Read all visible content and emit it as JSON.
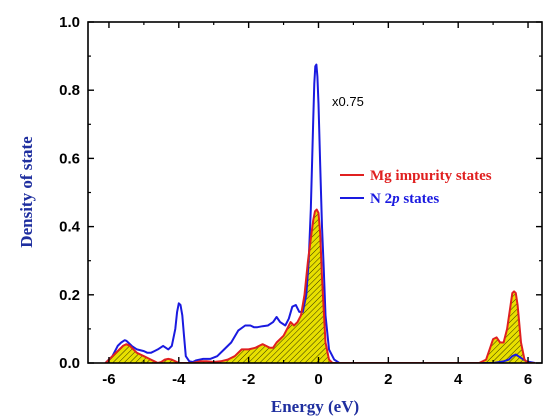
{
  "chart_data": {
    "type": "line",
    "xlabel": "Energy (eV)",
    "ylabel": "Density of state",
    "xlim": [
      -6.6,
      6.4
    ],
    "ylim": [
      0,
      1.0
    ],
    "x_ticks": [
      -6,
      -4,
      -2,
      0,
      2,
      4,
      6
    ],
    "x_tick_labels": [
      "-6",
      "-4",
      "-2",
      "0",
      "2",
      "4",
      "6"
    ],
    "y_ticks": [
      0.0,
      0.2,
      0.4,
      0.6,
      0.8,
      1.0
    ],
    "y_tick_labels": [
      "0.0",
      "0.2",
      "0.4",
      "0.6",
      "0.8",
      "1.0"
    ],
    "annotation": "x0.75",
    "legend_position": "right",
    "grid": false,
    "series": [
      {
        "name_parts": [
          "Mg impurity states"
        ],
        "color": "#e02020",
        "fill": "#e8e000",
        "fill_pattern": "hatched",
        "x": [
          -6.1,
          -5.8,
          -5.6,
          -5.5,
          -5.4,
          -5.3,
          -5.2,
          -5.1,
          -5.0,
          -4.9,
          -4.8,
          -4.7,
          -4.6,
          -4.5,
          -4.4,
          -4.3,
          -4.2,
          -4.1,
          -4.0,
          -3.9,
          -3.8,
          -3.6,
          -3.4,
          -3.2,
          -3.0,
          -2.8,
          -2.6,
          -2.4,
          -2.2,
          -2.0,
          -1.8,
          -1.7,
          -1.6,
          -1.5,
          -1.4,
          -1.3,
          -1.2,
          -1.1,
          -1.0,
          -0.9,
          -0.8,
          -0.7,
          -0.6,
          -0.5,
          -0.4,
          -0.3,
          -0.2,
          -0.15,
          -0.1,
          -0.05,
          0.0,
          0.05,
          0.1,
          0.2,
          0.3,
          0.4,
          0.6,
          1.0,
          2.0,
          3.0,
          4.0,
          4.6,
          4.8,
          4.9,
          5.0,
          5.1,
          5.2,
          5.3,
          5.4,
          5.5,
          5.55,
          5.6,
          5.65,
          5.7,
          5.8,
          5.9,
          6.0,
          6.2
        ],
        "y": [
          0.0,
          0.03,
          0.05,
          0.055,
          0.05,
          0.04,
          0.03,
          0.025,
          0.02,
          0.015,
          0.01,
          0.005,
          0.0,
          0.003,
          0.01,
          0.012,
          0.01,
          0.005,
          0.0,
          0.0,
          0.0,
          0.0,
          0.005,
          0.005,
          0.003,
          0.005,
          0.01,
          0.02,
          0.04,
          0.04,
          0.045,
          0.05,
          0.055,
          0.05,
          0.045,
          0.045,
          0.06,
          0.07,
          0.08,
          0.1,
          0.12,
          0.11,
          0.12,
          0.14,
          0.2,
          0.3,
          0.38,
          0.42,
          0.445,
          0.45,
          0.44,
          0.38,
          0.25,
          0.06,
          0.01,
          0.0,
          0.0,
          0.0,
          0.0,
          0.0,
          0.0,
          0.0,
          0.01,
          0.04,
          0.07,
          0.075,
          0.06,
          0.06,
          0.1,
          0.17,
          0.205,
          0.21,
          0.205,
          0.17,
          0.06,
          0.01,
          0.0,
          0.0
        ]
      },
      {
        "name_parts": [
          "N 2",
          "p",
          " states"
        ],
        "color": "#1a1ae0",
        "x": [
          -6.1,
          -5.9,
          -5.75,
          -5.65,
          -5.55,
          -5.5,
          -5.45,
          -5.35,
          -5.2,
          -5.0,
          -4.9,
          -4.8,
          -4.7,
          -4.6,
          -4.45,
          -4.3,
          -4.2,
          -4.1,
          -4.05,
          -4.0,
          -3.95,
          -3.9,
          -3.85,
          -3.8,
          -3.7,
          -3.6,
          -3.5,
          -3.3,
          -3.1,
          -2.9,
          -2.7,
          -2.5,
          -2.3,
          -2.1,
          -1.95,
          -1.85,
          -1.75,
          -1.6,
          -1.45,
          -1.3,
          -1.2,
          -1.1,
          -0.95,
          -0.85,
          -0.75,
          -0.65,
          -0.55,
          -0.45,
          -0.35,
          -0.28,
          -0.22,
          -0.18,
          -0.15,
          -0.12,
          -0.09,
          -0.06,
          -0.03,
          0.0,
          0.05,
          0.1,
          0.15,
          0.2,
          0.3,
          0.45,
          0.6,
          1.0,
          2.0,
          3.0,
          4.0,
          5.0,
          5.3,
          5.45,
          5.55,
          5.65,
          5.8,
          5.95,
          6.2
        ],
        "y": [
          0.0,
          0.02,
          0.05,
          0.06,
          0.067,
          0.065,
          0.06,
          0.05,
          0.04,
          0.035,
          0.03,
          0.03,
          0.035,
          0.04,
          0.05,
          0.04,
          0.05,
          0.1,
          0.15,
          0.175,
          0.17,
          0.14,
          0.08,
          0.02,
          0.005,
          0.003,
          0.008,
          0.012,
          0.012,
          0.02,
          0.04,
          0.06,
          0.095,
          0.11,
          0.11,
          0.105,
          0.105,
          0.108,
          0.11,
          0.12,
          0.135,
          0.12,
          0.11,
          0.13,
          0.165,
          0.17,
          0.15,
          0.15,
          0.2,
          0.3,
          0.45,
          0.6,
          0.72,
          0.82,
          0.87,
          0.875,
          0.84,
          0.76,
          0.58,
          0.4,
          0.28,
          0.14,
          0.04,
          0.01,
          0.0,
          0.0,
          0.0,
          0.0,
          0.0,
          0.0,
          0.005,
          0.01,
          0.02,
          0.025,
          0.015,
          0.005,
          0.0
        ]
      }
    ]
  }
}
